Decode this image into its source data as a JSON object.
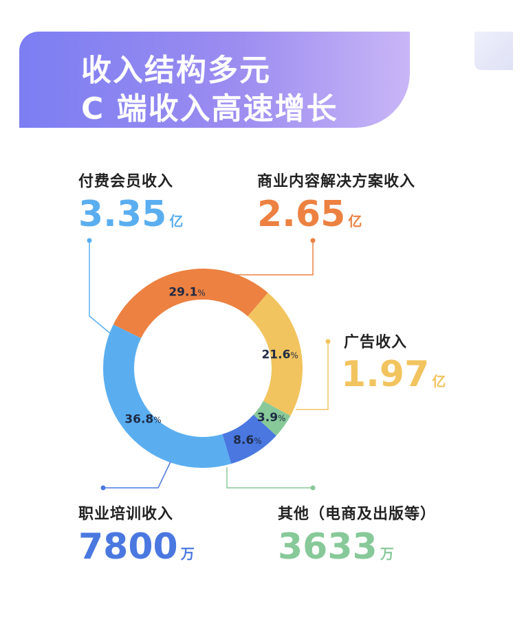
{
  "header": {
    "line1": "收入结构多元",
    "line2": "C 端收入高速增长"
  },
  "colors": {
    "blue": "#5aaef0",
    "orange": "#ec8141",
    "yellow": "#f2c45f",
    "green": "#87c999",
    "darkblue": "#4a78e0"
  },
  "categories": {
    "membership": {
      "label": "付费会员收入",
      "amount": "3.35",
      "unit": "亿"
    },
    "business": {
      "label": "商业内容解决方案收入",
      "amount": "2.65",
      "unit": "亿"
    },
    "ads": {
      "label": "广告收入",
      "amount": "1.97",
      "unit": "亿"
    },
    "training": {
      "label": "职业培训收入",
      "amount": "7800",
      "unit": "万"
    },
    "other": {
      "label": "其他（电商及出版等）",
      "amount": "3633",
      "unit": "万"
    }
  },
  "chart_data": {
    "type": "pie",
    "donut": true,
    "slices": [
      {
        "name": "商业内容解决方案收入",
        "value": 29.1,
        "label": "29.1",
        "pct": "%",
        "color": "#ec8141"
      },
      {
        "name": "广告收入",
        "value": 21.6,
        "label": "21.6",
        "pct": "%",
        "color": "#f2c45f"
      },
      {
        "name": "其他（电商及出版等）",
        "value": 3.9,
        "label": "3.9",
        "pct": "%",
        "color": "#87c999"
      },
      {
        "name": "职业培训收入",
        "value": 8.6,
        "label": "8.6",
        "pct": "%",
        "color": "#4a78e0"
      },
      {
        "name": "付费会员收入",
        "value": 36.8,
        "label": "36.8",
        "pct": "%",
        "color": "#5aaef0"
      }
    ]
  }
}
